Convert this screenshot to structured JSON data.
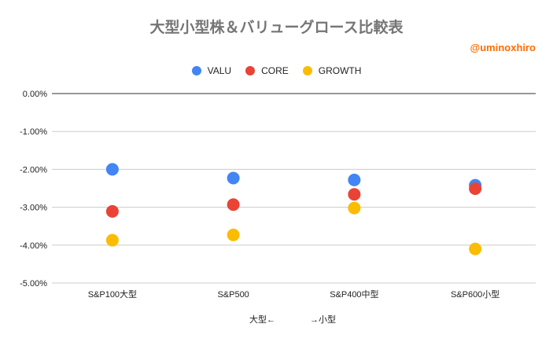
{
  "chart_data": {
    "type": "scatter",
    "title": "大型小型株＆バリューグロース比較表",
    "annotation": "@uminoxhiro",
    "xlabel": "大型←　　　　→小型",
    "ylabel": "",
    "categories": [
      "S&P100大型",
      "S&P500",
      "S&P400中型",
      "S&P600小型"
    ],
    "ylim": [
      -5,
      0
    ],
    "yticks": [
      0,
      -1,
      -2,
      -3,
      -4,
      -5
    ],
    "ytick_labels": [
      "0.00%",
      "-1.00%",
      "-2.00%",
      "-3.00%",
      "-4.00%",
      "-5.00%"
    ],
    "grid": true,
    "legend_position": "top",
    "series": [
      {
        "name": "VALU",
        "color": "#4285f4",
        "values": [
          -2.0,
          -2.23,
          -2.28,
          -2.42
        ]
      },
      {
        "name": "CORE",
        "color": "#ea4335",
        "values": [
          -3.11,
          -2.93,
          -2.66,
          -2.51
        ]
      },
      {
        "name": "GROWTH",
        "color": "#fbbc04",
        "values": [
          -3.87,
          -3.73,
          -3.02,
          -4.1
        ]
      }
    ]
  }
}
